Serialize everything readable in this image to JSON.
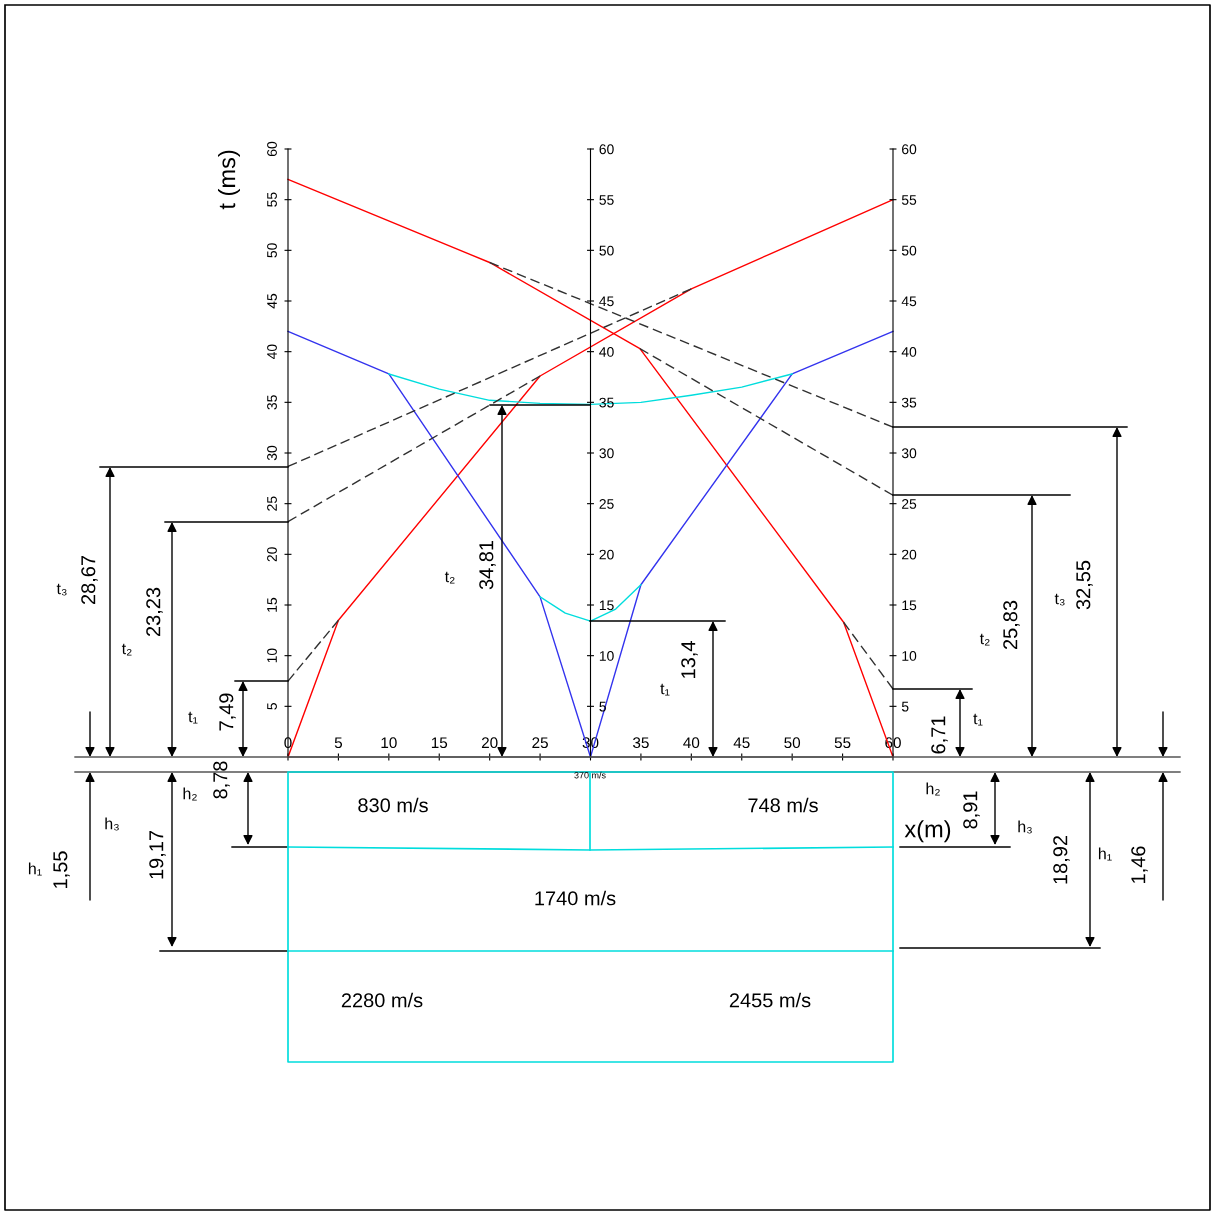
{
  "chart_data": {
    "type": "line",
    "xlabel": "x(m)",
    "ylabel": "t (ms)",
    "xlim": [
      0,
      60
    ],
    "xticks": [
      0,
      5,
      10,
      15,
      20,
      25,
      30,
      35,
      40,
      45,
      50,
      55,
      60
    ],
    "ylim": [
      0,
      60
    ],
    "yticks": [
      5,
      10,
      15,
      20,
      25,
      30,
      35,
      40,
      45,
      50,
      55,
      60
    ],
    "y2lim": [
      0,
      60
    ],
    "y2ticks": [
      5,
      10,
      15,
      20,
      25,
      30,
      35,
      40,
      45,
      50,
      55,
      60
    ],
    "y3lim": [
      0,
      60
    ],
    "y3ticks": [
      5,
      10,
      15,
      20,
      25,
      30,
      35,
      40,
      45,
      50,
      55,
      60
    ],
    "series": [
      {
        "color": "#ff0000",
        "line_style": "solid",
        "x": [
          0,
          5,
          25,
          40,
          60
        ],
        "values": [
          0,
          13.5,
          37.6,
          46.2,
          55
        ]
      },
      {
        "color": "#ff0000",
        "line_style": "solid",
        "x": [
          60,
          55.1,
          34.9,
          20,
          0
        ],
        "values": [
          0,
          13.3,
          40.3,
          48.8,
          57
        ]
      },
      {
        "color": "#3333ee",
        "line_style": "solid",
        "x": [
          30,
          25,
          10,
          0
        ],
        "values": [
          0,
          15.8,
          37.8,
          42
        ]
      },
      {
        "color": "#3333ee",
        "line_style": "solid",
        "x": [
          30,
          35,
          50,
          60
        ],
        "values": [
          0,
          17,
          37.8,
          42
        ]
      },
      {
        "color": "#00dddd",
        "line_style": "solid",
        "x": [
          10,
          15,
          20,
          25,
          30,
          35,
          40,
          45,
          50
        ],
        "values": [
          37.8,
          36.3,
          35.2,
          34.9,
          34.8,
          35,
          35.7,
          36.5,
          37.8
        ]
      },
      {
        "color": "#00dddd",
        "line_style": "solid",
        "x": [
          25,
          27.5,
          30,
          32.5,
          35
        ],
        "values": [
          15.8,
          14.2,
          13.4,
          14.6,
          17
        ]
      },
      {
        "color": "#303030",
        "line_style": "dashed",
        "x": [
          0,
          5
        ],
        "values": [
          7.49,
          13.5
        ]
      },
      {
        "color": "#303030",
        "line_style": "dashed",
        "x": [
          0,
          25
        ],
        "values": [
          23.23,
          37.6
        ]
      },
      {
        "color": "#303030",
        "line_style": "dashed",
        "x": [
          0,
          40
        ],
        "values": [
          28.67,
          46.2
        ]
      },
      {
        "color": "#303030",
        "line_style": "dashed",
        "x": [
          60,
          55.1
        ],
        "values": [
          6.71,
          13.3
        ]
      },
      {
        "color": "#303030",
        "line_style": "dashed",
        "x": [
          60,
          34.9
        ],
        "values": [
          25.83,
          40.3
        ]
      },
      {
        "color": "#303030",
        "line_style": "dashed",
        "x": [
          60,
          20
        ],
        "values": [
          32.55,
          48.8
        ]
      }
    ],
    "annotations": [
      "t₃",
      "28,67",
      "t₂",
      "23,23",
      "t₁",
      "7,49",
      "t₂",
      "34,81",
      "t₁",
      "13,4",
      "6,71",
      "t₁",
      "t₂",
      "25,83",
      "t₃",
      "32,55",
      "h₁",
      "1,55",
      "h₃",
      "19,17",
      "h₂",
      "8,78",
      "h₂",
      "8,91",
      "h₃",
      "18,92",
      "h₁",
      "1,46",
      "830 m/s",
      "748 m/s",
      "1740 m/s",
      "2280 m/s",
      "2455 m/s",
      "370 m/s"
    ]
  }
}
